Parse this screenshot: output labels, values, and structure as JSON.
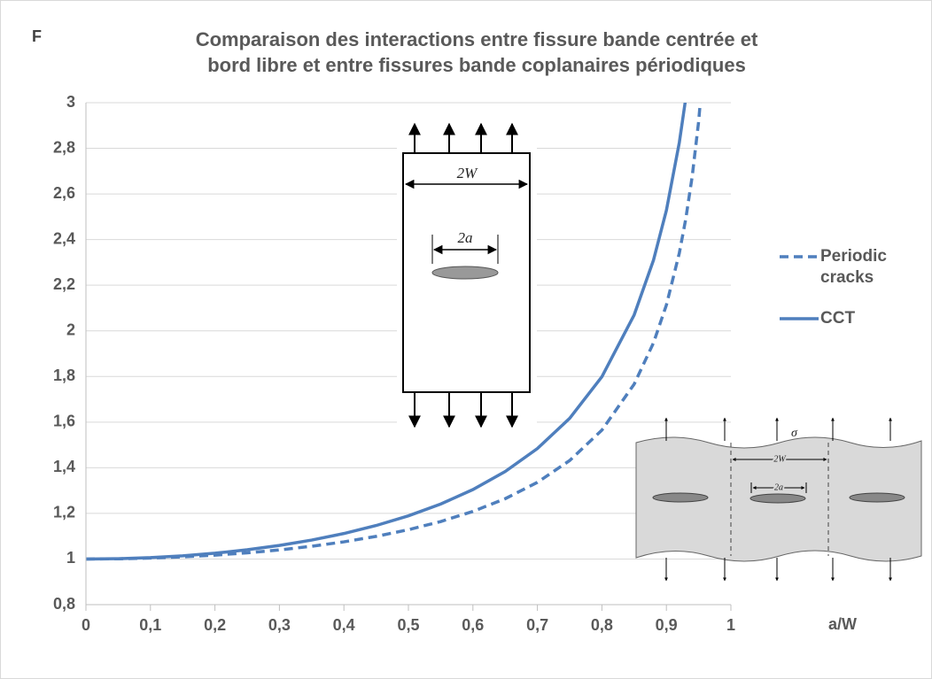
{
  "chart_data": {
    "type": "line",
    "panel_label": "F",
    "title": "Comparaison des interactions entre fissure bande centrée et bord libre et entre fissures bande coplanaires périodiques",
    "xlabel": "a/W",
    "x": [
      0,
      0.05,
      0.1,
      0.15,
      0.2,
      0.25,
      0.3,
      0.35,
      0.4,
      0.45,
      0.5,
      0.55,
      0.6,
      0.65,
      0.7,
      0.75,
      0.8,
      0.85,
      0.88,
      0.9,
      0.92,
      0.93,
      0.94,
      0.95,
      0.96
    ],
    "series": [
      {
        "name": "Periodic cracks",
        "color": "#4f7fbd",
        "dash": true,
        "values": [
          1,
          1.001,
          1.0041,
          1.0094,
          1.017,
          1.027,
          1.0398,
          1.0558,
          1.0753,
          1.0992,
          1.1284,
          1.1642,
          1.2085,
          1.2642,
          1.336,
          1.4315,
          1.565,
          1.7663,
          1.9474,
          2.1133,
          2.3404,
          2.4901,
          2.6767,
          2.918,
          3.2466
        ]
      },
      {
        "name": "CCT",
        "color": "#4f7fbd",
        "dash": false,
        "values": [
          1,
          1.0015,
          1.0062,
          1.0141,
          1.0254,
          1.0404,
          1.0594,
          1.083,
          1.1118,
          1.1468,
          1.1892,
          1.2409,
          1.3043,
          1.3834,
          1.4841,
          1.6165,
          1.7989,
          2.0697,
          2.3101,
          2.5283,
          2.8247,
          3.0189,
          null,
          null,
          null
        ]
      }
    ],
    "xlim": [
      0,
      1
    ],
    "xticks": [
      0,
      {
        "value": 0.1,
        "label": "0,1"
      },
      {
        "value": 0.2,
        "label": "0,2"
      },
      {
        "value": 0.3,
        "label": "0,3"
      },
      {
        "value": 0.4,
        "label": "0,4"
      },
      {
        "value": 0.5,
        "label": "0,5"
      },
      {
        "value": 0.6,
        "label": "0,6"
      },
      {
        "value": 0.7,
        "label": "0,7"
      },
      {
        "value": 0.8,
        "label": "0,8"
      },
      {
        "value": 0.9,
        "label": "0,9"
      },
      1
    ],
    "ylim": [
      0.8,
      3
    ],
    "yticks": [
      {
        "value": 0.8,
        "label": "0,8"
      },
      1,
      {
        "value": 1.2,
        "label": "1,2"
      },
      {
        "value": 1.4,
        "label": "1,4"
      },
      {
        "value": 1.6,
        "label": "1,6"
      },
      {
        "value": 1.8,
        "label": "1,8"
      },
      2,
      {
        "value": 2.2,
        "label": "2,2"
      },
      {
        "value": 2.4,
        "label": "2,4"
      },
      {
        "value": 2.6,
        "label": "2,6"
      },
      {
        "value": 2.8,
        "label": "2,8"
      },
      3
    ],
    "grid": true,
    "legend": "right",
    "annotations": [
      "2W",
      "2a",
      "2W",
      "2a",
      "σ"
    ]
  }
}
